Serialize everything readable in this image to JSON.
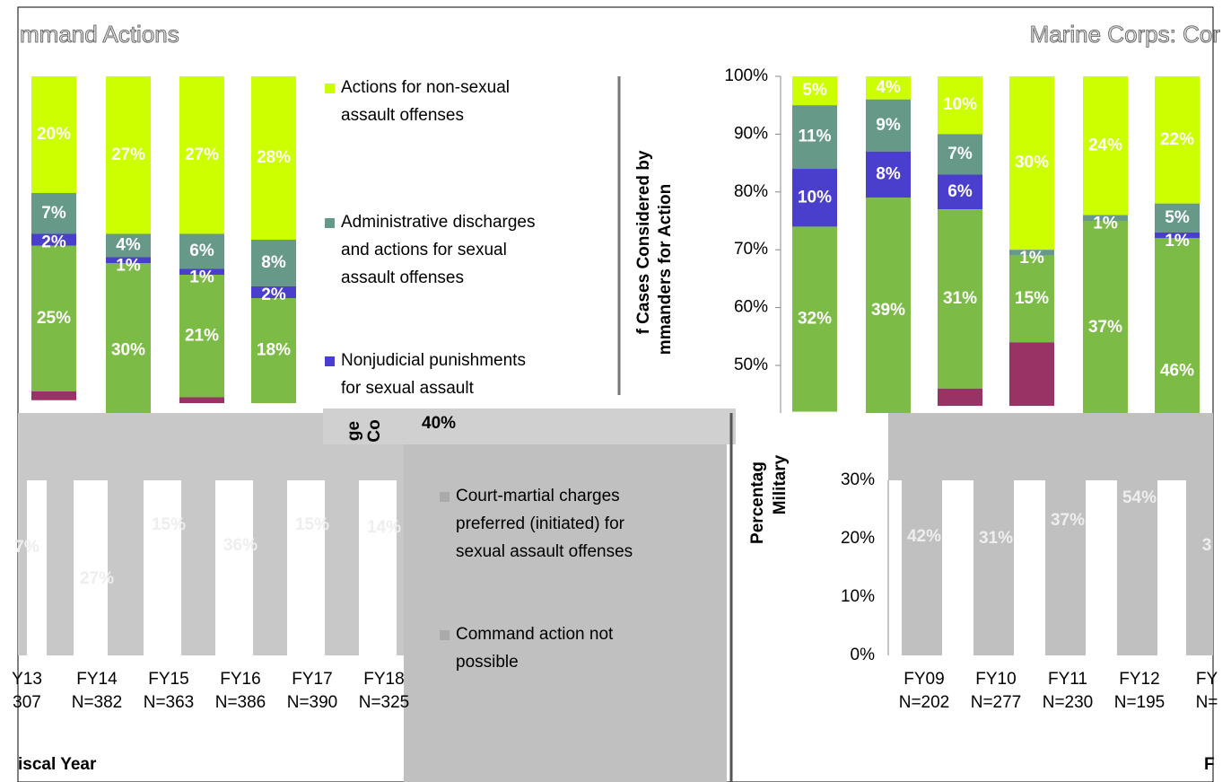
{
  "chart_data": [
    {
      "type": "bar",
      "title": "mmand Actions",
      "series": [
        {
          "name": "Actions for non-sexual assault offenses",
          "color": "#ccff00",
          "values": [
            20,
            27,
            27,
            28
          ],
          "value_labels": [
            "20%",
            "27%",
            "27%",
            "28%"
          ]
        },
        {
          "name": "Administrative discharges and actions for sexual assault offenses",
          "color": "#669988",
          "values": [
            7,
            4,
            6,
            8
          ],
          "value_labels": [
            "7%",
            "4%",
            "6%",
            "8%"
          ]
        },
        {
          "name": "Nonjudicial punishments for sexual assault",
          "color": "#4a3fcc",
          "values": [
            2,
            1,
            1,
            2
          ],
          "value_labels": [
            "2%",
            "1%",
            "1%",
            "2%"
          ]
        },
        {
          "color": "#7dbb47",
          "values": [
            25,
            30,
            21,
            18
          ],
          "value_labels": [
            "25%",
            "30%",
            "21%",
            "18%"
          ]
        },
        {
          "color": "#993366",
          "values": [
            1.5,
            0,
            1,
            0
          ]
        }
      ]
    },
    {
      "type": "bar",
      "title": "Marine Corps: Cor",
      "ylabel": [
        "f Cases Considered by",
        "mmanders for Action"
      ],
      "yticks": [
        {
          "value": 100,
          "label": "100%"
        },
        {
          "value": 90,
          "label": "90%"
        },
        {
          "value": 80,
          "label": "80%"
        },
        {
          "value": 70,
          "label": "70%"
        },
        {
          "value": 60,
          "label": "60%"
        },
        {
          "value": 50,
          "label": "50%"
        }
      ],
      "series": [
        {
          "color": "#ccff00",
          "values": [
            5,
            4,
            10,
            30,
            24,
            22
          ],
          "value_labels": [
            "5%",
            "4%",
            "10%",
            "30%",
            "24%",
            "22%"
          ]
        },
        {
          "color": "#669988",
          "values": [
            11,
            9,
            7,
            1,
            1,
            5
          ],
          "value_labels": [
            "11%",
            "9%",
            "7%",
            "1%",
            "1%",
            "5%"
          ]
        },
        {
          "color": "#4a3fcc",
          "values": [
            10,
            8,
            6,
            null,
            null,
            1
          ],
          "value_labels": [
            "10%",
            "8%",
            "6%",
            null,
            null,
            "1%"
          ]
        },
        {
          "color": "#7dbb47",
          "values": [
            32,
            39,
            31,
            15,
            37,
            46
          ],
          "value_labels": [
            "32%",
            "39%",
            "31%",
            "15%",
            "37%",
            "46%"
          ]
        },
        {
          "color": "#993366",
          "values": [
            0,
            0,
            3,
            11,
            0,
            0
          ]
        }
      ]
    }
  ],
  "fragments": {
    "bottom_left_labels": [
      "7%",
      "27%",
      "15%",
      "36%",
      "15%",
      "14%"
    ],
    "bottom_left_cat1": [
      "Y13",
      "FY14",
      "FY15",
      "FY16",
      "FY17",
      "FY18"
    ],
    "bottom_left_cat2": [
      "307",
      "N=382",
      "N=363",
      "N=386",
      "N=390",
      "N=325"
    ],
    "xlabel_left": "iscal Year",
    "middle_label": "40%",
    "ylabel_mid": [
      "ge",
      "Co"
    ],
    "legend_bottom": [
      "Court-martial charges preferred (initiated) for sexual assault offenses",
      "Command action not possible"
    ],
    "ylabel_bottom_right": [
      "Percentag",
      "Military"
    ],
    "bottom_right_ticks": [
      "30%",
      "20%",
      "10%",
      "0%"
    ],
    "bottom_right_labels": [
      "42%",
      "31%",
      "37%",
      "54%",
      "3"
    ],
    "bottom_right_cat1": [
      "FY09",
      "FY10",
      "FY11",
      "FY12",
      "FY"
    ],
    "bottom_right_cat2": [
      "N=202",
      "N=277",
      "N=230",
      "N=195",
      "N="
    ],
    "xlabel_right": "F"
  }
}
